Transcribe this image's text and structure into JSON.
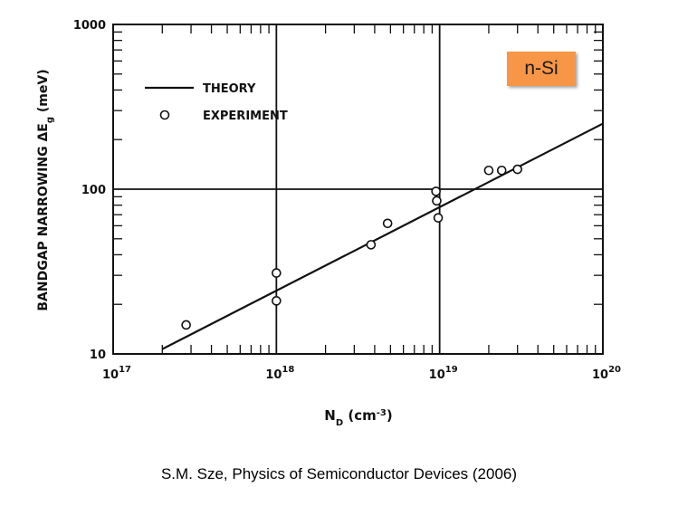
{
  "badge": {
    "label": "n-Si",
    "color": "#f79646"
  },
  "caption": "S.M. Sze, Physics of Semiconductor Devices (2006)",
  "chart_data": {
    "type": "scatter",
    "title": "",
    "xlabel": "N_D (cm^-3)",
    "ylabel": "BANDGAP NARROWING ΔE_g (meV)",
    "xscale": "log",
    "yscale": "log",
    "xlim": [
      1e+17,
      1e+20
    ],
    "ylim": [
      10,
      1000
    ],
    "x_ticks": [
      {
        "value": 1e+17,
        "base": "10",
        "exp": "17"
      },
      {
        "value": 1e+18,
        "base": "10",
        "exp": "18"
      },
      {
        "value": 1e+19,
        "base": "10",
        "exp": "19"
      },
      {
        "value": 1e+20,
        "base": "10",
        "exp": "20"
      }
    ],
    "y_ticks": [
      {
        "value": 10,
        "label": "10"
      },
      {
        "value": 100,
        "label": "100"
      },
      {
        "value": 1000,
        "label": "1000"
      }
    ],
    "grid": "major decades only",
    "legend": {
      "placement": "top-left",
      "entries": [
        {
          "label": "THEORY",
          "style": "line"
        },
        {
          "label": "EXPERIMENT",
          "style": "open-circle"
        }
      ]
    },
    "series": [
      {
        "name": "THEORY",
        "style": "line",
        "x": [
          2e+17,
          1e+20
        ],
        "y": [
          10.7,
          250
        ]
      },
      {
        "name": "EXPERIMENT",
        "style": "open-circle",
        "x": [
          2.8e+17,
          1e+18,
          1e+18,
          3.8e+18,
          4.8e+18,
          9.5e+18,
          9.6e+18,
          9.8e+18,
          2e+19,
          2.4e+19,
          3e+19
        ],
        "y": [
          15,
          31,
          21,
          46,
          62,
          97,
          85,
          67,
          130,
          130,
          132
        ]
      }
    ]
  }
}
